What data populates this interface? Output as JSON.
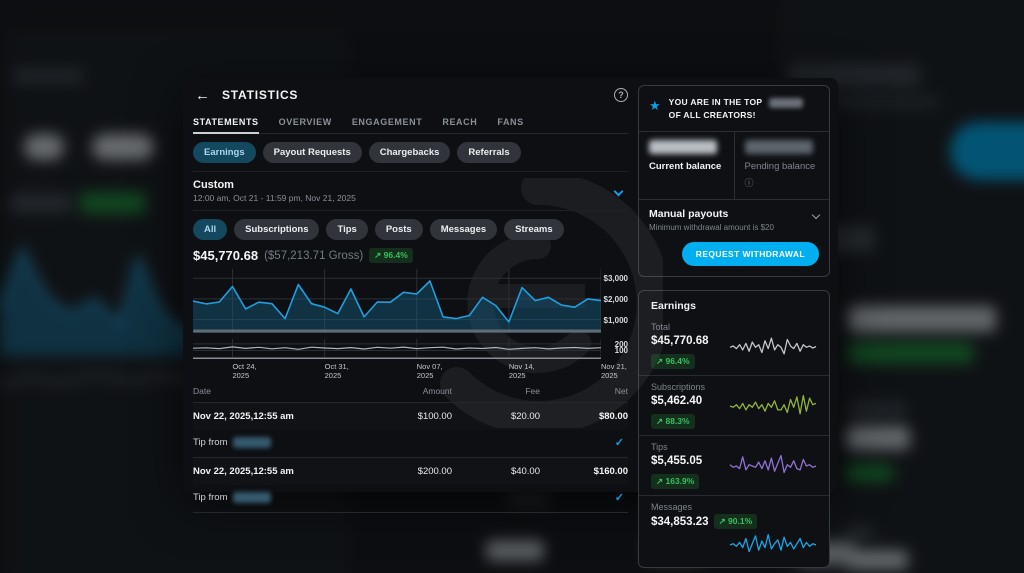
{
  "icons": {
    "back": "←",
    "help": "?",
    "star": "★",
    "info": "ⓘ",
    "check": "✓",
    "trend_up": "↗"
  },
  "colors": {
    "accent_blue": "#00aff0",
    "chart_line": "#1e9fe0",
    "chart_fill": "rgba(23,94,128,0.45)",
    "badge_green_text": "#39bf5e",
    "badge_green_bg": "#14301d",
    "spark_total": "#c2c7cc",
    "spark_subscriptions": "#93b43b",
    "spark_tips": "#9271d6",
    "spark_messages": "#1ba6e6"
  },
  "modal": {
    "title": "STATISTICS",
    "tabs": [
      "STATEMENTS",
      "OVERVIEW",
      "ENGAGEMENT",
      "REACH",
      "FANS"
    ],
    "active_tab": "STATEMENTS",
    "filters": [
      "Earnings",
      "Payout Requests",
      "Chargebacks",
      "Referrals"
    ],
    "active_filter": "Earnings",
    "range": {
      "label": "Custom",
      "detail": "12:00 am, Oct 21 - 11:59 pm, Nov 21, 2025"
    },
    "categories": [
      "All",
      "Subscriptions",
      "Tips",
      "Posts",
      "Messages",
      "Streams"
    ],
    "active_category": "All",
    "summary": {
      "net": "$45,770.68",
      "gross": "($57,213.71 Gross)",
      "change": "↗ 96.4%"
    },
    "table": {
      "headers": [
        "Date",
        "Amount",
        "Fee",
        "Net"
      ],
      "rows": [
        {
          "date": "Nov 22, 2025,12:55 am",
          "amount": "$100.00",
          "fee": "$20.00",
          "net": "$80.00",
          "description": "Tip from"
        },
        {
          "date": "Nov 22, 2025,12:55 am",
          "amount": "$200.00",
          "fee": "$40.00",
          "net": "$160.00",
          "description": "Tip from"
        }
      ]
    }
  },
  "sidebar": {
    "creators_line1": "YOU ARE IN THE TOP",
    "creators_line2": "OF ALL CREATORS!",
    "balances": {
      "current_label": "Current balance",
      "pending_label": "Pending balance"
    },
    "payouts": {
      "title": "Manual payouts",
      "subtitle": "Minimum withdrawal amount is $20",
      "button": "REQUEST WITHDRAWAL"
    },
    "earnings": {
      "title": "Earnings",
      "items": [
        {
          "label": "Total",
          "value": "$45,770.68",
          "change": "↗ 96.4%",
          "color": "#c2c7cc",
          "spark": [
            45,
            50,
            40,
            55,
            35,
            60,
            30,
            65,
            45,
            55,
            25,
            70,
            40,
            80,
            35,
            55,
            45,
            20,
            75,
            50,
            40,
            60,
            30,
            55,
            45,
            50,
            42,
            48
          ]
        },
        {
          "label": "Subscriptions",
          "value": "$5,462.40",
          "change": "↗ 88.3%",
          "color": "#93b43b",
          "spark": [
            50,
            45,
            55,
            40,
            60,
            35,
            55,
            45,
            65,
            40,
            55,
            30,
            60,
            45,
            70,
            35,
            35,
            55,
            25,
            75,
            45,
            85,
            20,
            90,
            30,
            80,
            55,
            60
          ]
        },
        {
          "label": "Tips",
          "value": "$5,455.05",
          "change": "↗ 163.9%",
          "color": "#9271d6",
          "spark": [
            55,
            45,
            50,
            40,
            85,
            35,
            55,
            50,
            45,
            65,
            40,
            70,
            35,
            80,
            30,
            60,
            90,
            25,
            55,
            45,
            70,
            40,
            35,
            75,
            50,
            55,
            45,
            50
          ]
        },
        {
          "label": "Messages",
          "value": "$34,853.23",
          "change": "↗ 90.1%",
          "color": "#1ba6e6",
          "spark": [
            50,
            55,
            45,
            60,
            40,
            75,
            25,
            55,
            85,
            30,
            65,
            40,
            90,
            35,
            55,
            70,
            30,
            80,
            45,
            60,
            35,
            55,
            75,
            40,
            60,
            45,
            55,
            50
          ]
        }
      ]
    }
  },
  "chart_data": {
    "type": "line",
    "title": "Net earnings, Oct 21 - Nov 21, 2025",
    "x_range": "Oct 21 - Nov 21, 2025",
    "gridline_indices": [
      3,
      10,
      17,
      24,
      31
    ],
    "x_tick_labels": [
      {
        "top": "Oct 24,",
        "bottom": "2025"
      },
      {
        "top": "Oct 31,",
        "bottom": "2025"
      },
      {
        "top": "Nov 07,",
        "bottom": "2025"
      },
      {
        "top": "Nov 14,",
        "bottom": "2025"
      },
      {
        "top": "Nov 21,",
        "bottom": "2025"
      }
    ],
    "main": {
      "yticks": [
        {
          "label": "$3,000",
          "value": 3000
        },
        {
          "label": "$2,000",
          "value": 2000
        },
        {
          "label": "$1,000",
          "value": 1000
        }
      ],
      "ylim": [
        400,
        3400
      ],
      "values": [
        1900,
        1760,
        1850,
        2600,
        1520,
        1840,
        1770,
        1050,
        2700,
        1770,
        1600,
        1290,
        2480,
        1130,
        1850,
        1840,
        2320,
        2240,
        2870,
        1130,
        1050,
        1200,
        2080,
        1680,
        890,
        2550,
        1920,
        2080,
        1700,
        1600,
        2000,
        1920
      ]
    },
    "mini": {
      "yticks": [
        {
          "label": "200",
          "value": 200
        },
        {
          "label": "100",
          "value": 100
        }
      ],
      "ylim": [
        0,
        260
      ],
      "values": [
        135,
        140,
        128,
        155,
        132,
        148,
        126,
        142,
        118,
        150,
        138,
        128,
        144,
        122,
        148,
        134,
        152,
        128,
        142,
        150,
        122,
        138,
        130,
        146,
        118,
        132,
        142,
        124,
        138,
        146,
        132,
        142
      ]
    }
  }
}
